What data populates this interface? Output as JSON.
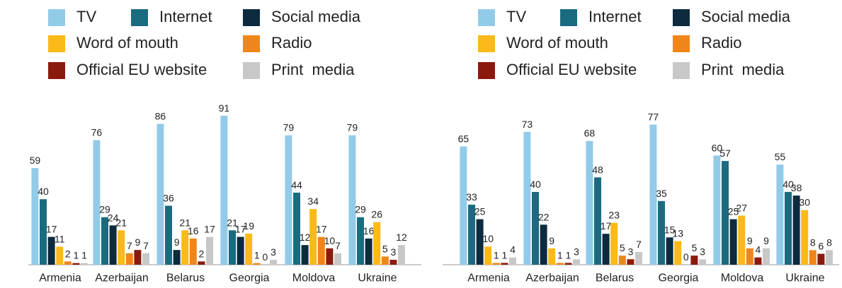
{
  "chart_data": [
    {
      "type": "bar",
      "categories": [
        "Armenia",
        "Azerbaijan",
        "Belarus",
        "Georgia",
        "Moldova",
        "Ukraine"
      ],
      "ylim": [
        0,
        100
      ],
      "series": [
        {
          "name": "TV",
          "color": "#92cbe8",
          "values": [
            59,
            76,
            86,
            91,
            79,
            79
          ]
        },
        {
          "name": "Internet",
          "color": "#1b6b80",
          "values": [
            40,
            29,
            36,
            21,
            44,
            29
          ]
        },
        {
          "name": "Social media",
          "color": "#0e2a3f",
          "values": [
            17,
            24,
            9,
            17,
            12,
            16
          ]
        },
        {
          "name": "Word of mouth",
          "color": "#fbb91a",
          "values": [
            11,
            21,
            21,
            19,
            34,
            26
          ]
        },
        {
          "name": "Radio",
          "color": "#f0861a",
          "values": [
            2,
            7,
            16,
            1,
            17,
            5
          ]
        },
        {
          "name": "Official EU website",
          "color": "#8b1a0e",
          "values": [
            1,
            9,
            2,
            0,
            10,
            3
          ]
        },
        {
          "name": "Print  media",
          "color": "#c8c8c8",
          "values": [
            1,
            7,
            17,
            3,
            7,
            12
          ]
        }
      ]
    },
    {
      "type": "bar",
      "categories": [
        "Armenia",
        "Azerbaijan",
        "Belarus",
        "Georgia",
        "Moldova",
        "Ukraine"
      ],
      "ylim": [
        0,
        90
      ],
      "series": [
        {
          "name": "TV",
          "color": "#92cbe8",
          "values": [
            65,
            73,
            68,
            77,
            60,
            55
          ]
        },
        {
          "name": "Internet",
          "color": "#1b6b80",
          "values": [
            33,
            40,
            48,
            35,
            57,
            40
          ]
        },
        {
          "name": "Social media",
          "color": "#0e2a3f",
          "values": [
            25,
            22,
            17,
            15,
            25,
            38
          ]
        },
        {
          "name": "Word of mouth",
          "color": "#fbb91a",
          "values": [
            10,
            9,
            23,
            13,
            27,
            30
          ]
        },
        {
          "name": "Radio",
          "color": "#f0861a",
          "values": [
            1,
            1,
            5,
            0,
            9,
            8
          ]
        },
        {
          "name": "Official EU website",
          "color": "#8b1a0e",
          "values": [
            1,
            1,
            3,
            5,
            4,
            6
          ]
        },
        {
          "name": "Print  media",
          "color": "#c8c8c8",
          "values": [
            4,
            3,
            7,
            3,
            9,
            8
          ]
        }
      ]
    }
  ]
}
